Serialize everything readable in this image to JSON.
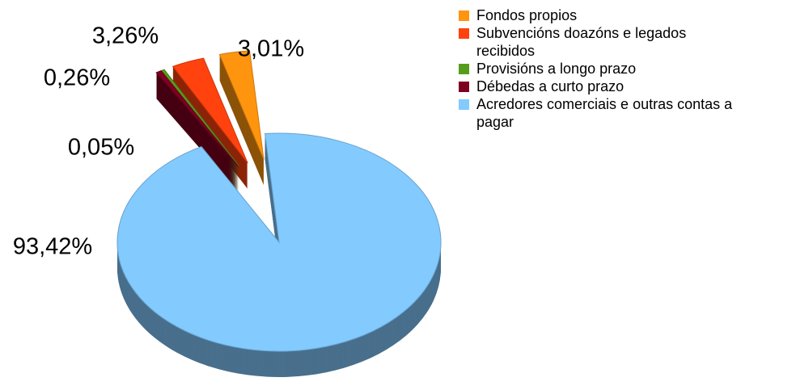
{
  "chart_data": {
    "type": "pie",
    "categories": [
      "Fondos propios",
      "Subvencións doazóns e legados recibidos",
      "Provisións a longo prazo",
      "Débedas a curto prazo",
      "Acredores comerciais e outras contas a pagar"
    ],
    "values": [
      3.01,
      3.26,
      0.26,
      0.05,
      93.42
    ],
    "value_labels": [
      "3,01%",
      "3,26%",
      "0,26%",
      "0,05%",
      "93,42%"
    ],
    "colors": [
      "#ff950e",
      "#ff420e",
      "#579d1c",
      "#7e0021",
      "#83caff"
    ],
    "legend": "right"
  }
}
